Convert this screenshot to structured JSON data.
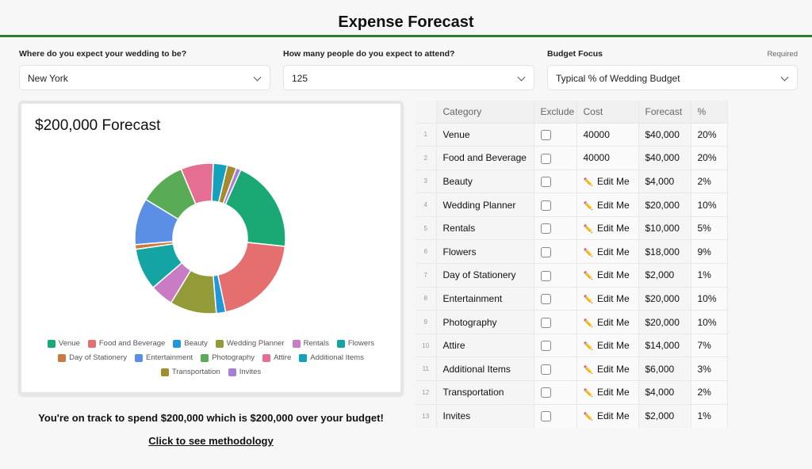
{
  "header": {
    "title": "Expense Forecast"
  },
  "form": {
    "location": {
      "label": "Where do you expect your wedding to be?",
      "value": "New York"
    },
    "attendees": {
      "label": "How many people do you expect to attend?",
      "value": "125"
    },
    "budget_focus": {
      "label": "Budget Focus",
      "value": "Typical % of Wedding Budget",
      "required_label": "Required"
    }
  },
  "chart_card": {
    "title": "$200,000 Forecast"
  },
  "chart_data": {
    "type": "pie",
    "donut": true,
    "title": "$200,000 Forecast",
    "categories": [
      "Venue",
      "Food and Beverage",
      "Beauty",
      "Wedding Planner",
      "Rentals",
      "Flowers",
      "Day of Stationery",
      "Entertainment",
      "Photography",
      "Attire",
      "Additional Items",
      "Transportation",
      "Invites"
    ],
    "values": [
      40000,
      40000,
      4000,
      20000,
      10000,
      18000,
      2000,
      20000,
      20000,
      14000,
      6000,
      4000,
      2000
    ],
    "colors": [
      "#1aa874",
      "#e56e6e",
      "#1f97d8",
      "#939a38",
      "#c97cc4",
      "#14a4a3",
      "#c97a3e",
      "#5b8fe6",
      "#5aab55",
      "#e56f93",
      "#14a1be",
      "#a48b2d",
      "#a77ed6"
    ],
    "legend_position": "bottom"
  },
  "summary": {
    "text": "You're on track to spend $200,000 which is $200,000 over your budget!",
    "link": "Click to see methodology"
  },
  "table": {
    "headers": {
      "category": "Category",
      "exclude": "Exclude",
      "cost": "Cost",
      "forecast": "Forecast",
      "pct": "%"
    },
    "edit_label": "Edit Me",
    "rows": [
      {
        "idx": "1",
        "category": "Venue",
        "cost": "40000",
        "forecast": "$40,000",
        "pct": "20%"
      },
      {
        "idx": "2",
        "category": "Food and Beverage",
        "cost": "40000",
        "forecast": "$40,000",
        "pct": "20%"
      },
      {
        "idx": "3",
        "category": "Beauty",
        "cost": "",
        "forecast": "$4,000",
        "pct": "2%"
      },
      {
        "idx": "4",
        "category": "Wedding Planner",
        "cost": "",
        "forecast": "$20,000",
        "pct": "10%"
      },
      {
        "idx": "5",
        "category": "Rentals",
        "cost": "",
        "forecast": "$10,000",
        "pct": "5%"
      },
      {
        "idx": "6",
        "category": "Flowers",
        "cost": "",
        "forecast": "$18,000",
        "pct": "9%"
      },
      {
        "idx": "7",
        "category": "Day of Stationery",
        "cost": "",
        "forecast": "$2,000",
        "pct": "1%"
      },
      {
        "idx": "8",
        "category": "Entertainment",
        "cost": "",
        "forecast": "$20,000",
        "pct": "10%"
      },
      {
        "idx": "9",
        "category": "Photography",
        "cost": "",
        "forecast": "$20,000",
        "pct": "10%"
      },
      {
        "idx": "10",
        "category": "Attire",
        "cost": "",
        "forecast": "$14,000",
        "pct": "7%"
      },
      {
        "idx": "11",
        "category": "Additional Items",
        "cost": "",
        "forecast": "$6,000",
        "pct": "3%"
      },
      {
        "idx": "12",
        "category": "Transportation",
        "cost": "",
        "forecast": "$4,000",
        "pct": "2%"
      },
      {
        "idx": "13",
        "category": "Invites",
        "cost": "",
        "forecast": "$2,000",
        "pct": "1%"
      }
    ]
  }
}
